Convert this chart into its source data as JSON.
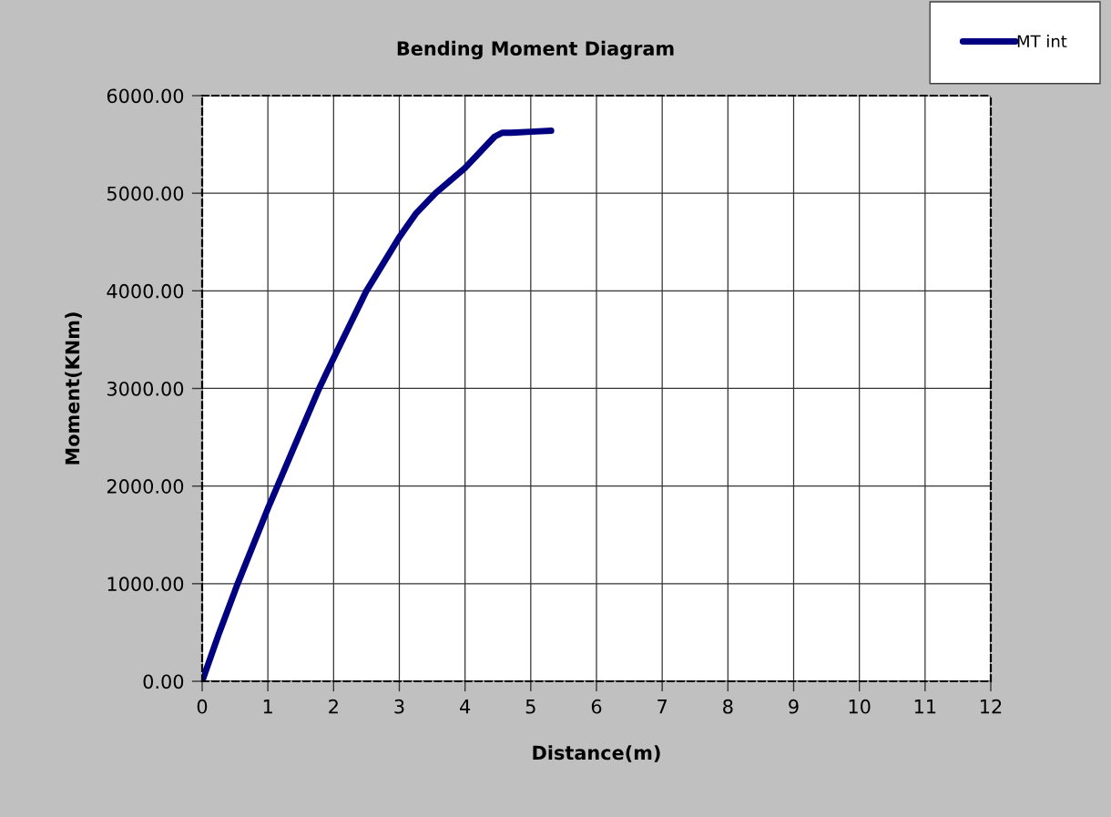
{
  "chart_data": {
    "type": "line",
    "title": "Bending Moment Diagram",
    "xlabel": "Distance(m)",
    "ylabel": "Moment(KNm)",
    "series": [
      {
        "name": "MT int",
        "color": "#000080",
        "x": [
          0,
          0.25,
          0.54,
          1.0,
          1.5,
          1.78,
          2.0,
          2.5,
          3.0,
          3.25,
          3.55,
          4.0,
          4.45,
          4.57,
          4.7,
          5.0,
          5.31
        ],
        "values": [
          0,
          480,
          1000,
          1770,
          2560,
          3000,
          3310,
          4000,
          4550,
          4790,
          5000,
          5260,
          5580,
          5620,
          5620,
          5630,
          5640
        ]
      }
    ],
    "xlim": [
      0,
      12
    ],
    "xticks": [
      0,
      1,
      2,
      3,
      4,
      5,
      6,
      7,
      8,
      9,
      10,
      11,
      12
    ],
    "ylim": [
      0,
      6000
    ],
    "yticks": [
      {
        "value": 0,
        "label": "0.00"
      },
      {
        "value": 1000,
        "label": "1000.00"
      },
      {
        "value": 2000,
        "label": "2000.00"
      },
      {
        "value": 3000,
        "label": "3000.00"
      },
      {
        "value": 4000,
        "label": "4000.00"
      },
      {
        "value": 5000,
        "label": "5000.00"
      },
      {
        "value": 6000,
        "label": "6000.00"
      }
    ],
    "grid": true,
    "legend": "top right",
    "marker": "none",
    "line_style": "solid"
  }
}
